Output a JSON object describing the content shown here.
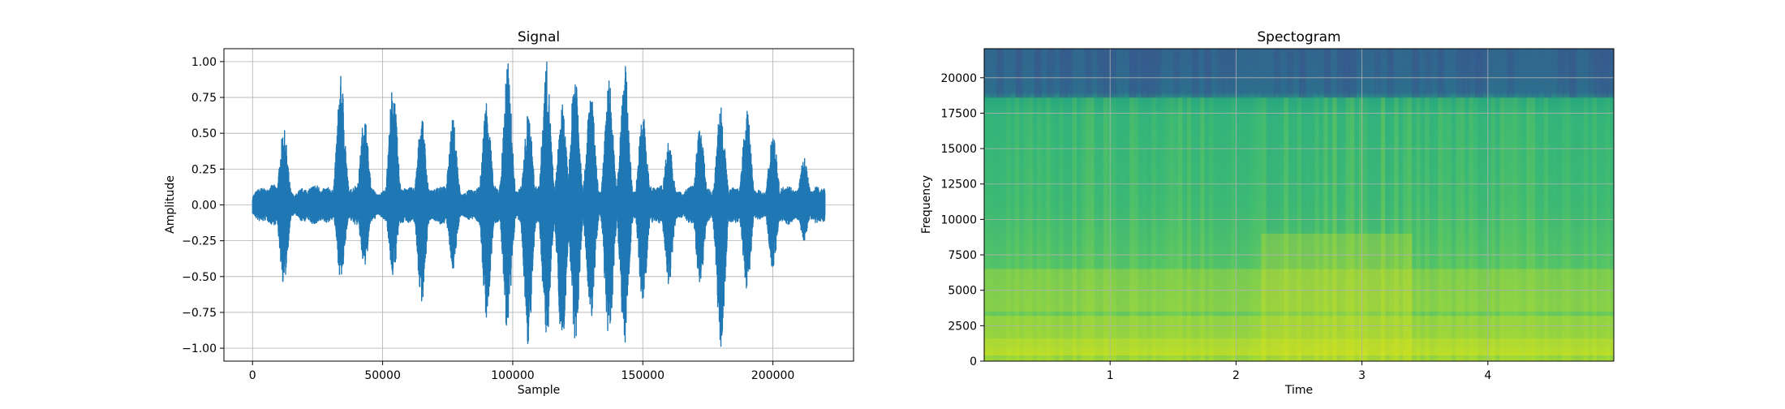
{
  "chart_data": [
    {
      "type": "line",
      "title": "Signal",
      "xlabel": "Sample",
      "ylabel": "Amplitude",
      "xlim": [
        -11000,
        231000
      ],
      "ylim": [
        -1.09,
        1.09
      ],
      "grid": true,
      "xticks": [
        0,
        50000,
        100000,
        150000,
        200000
      ],
      "xticklabels": [
        "0",
        "50000",
        "100000",
        "150000",
        "200000"
      ],
      "yticks": [
        1.0,
        0.75,
        0.5,
        0.25,
        0.0,
        -0.25,
        -0.5,
        -0.75,
        -1.0
      ],
      "yticklabels": [
        "1.00",
        "0.75",
        "0.50",
        "0.25",
        "0.00",
        "−0.25",
        "−0.50",
        "−0.75",
        "−1.00"
      ],
      "series": [
        {
          "color": "#1f77b4",
          "x_range": [
            0,
            220000
          ],
          "envelope_peaks": [
            {
              "x": 12000,
              "upper": 0.53,
              "lower": -0.56
            },
            {
              "x": 34000,
              "upper": 0.9,
              "lower": -0.53
            },
            {
              "x": 43000,
              "upper": 0.63,
              "lower": -0.45
            },
            {
              "x": 54000,
              "upper": 0.85,
              "lower": -0.5
            },
            {
              "x": 65000,
              "upper": 0.61,
              "lower": -0.68
            },
            {
              "x": 77000,
              "upper": 0.6,
              "lower": -0.45
            },
            {
              "x": 90000,
              "upper": 0.75,
              "lower": -0.8
            },
            {
              "x": 98000,
              "upper": 1.0,
              "lower": -0.9
            },
            {
              "x": 106000,
              "upper": 0.65,
              "lower": -0.98
            },
            {
              "x": 113000,
              "upper": 1.0,
              "lower": -0.95
            },
            {
              "x": 119000,
              "upper": 0.7,
              "lower": -1.0
            },
            {
              "x": 124000,
              "upper": 0.98,
              "lower": -0.97
            },
            {
              "x": 130000,
              "upper": 0.8,
              "lower": -0.82
            },
            {
              "x": 137000,
              "upper": 0.88,
              "lower": -1.0
            },
            {
              "x": 143000,
              "upper": 1.0,
              "lower": -0.98
            },
            {
              "x": 150000,
              "upper": 0.65,
              "lower": -0.7
            },
            {
              "x": 160000,
              "upper": 0.45,
              "lower": -0.56
            },
            {
              "x": 172000,
              "upper": 0.55,
              "lower": -0.55
            },
            {
              "x": 180000,
              "upper": 0.73,
              "lower": -1.0
            },
            {
              "x": 190000,
              "upper": 0.67,
              "lower": -0.6
            },
            {
              "x": 200000,
              "upper": 0.53,
              "lower": -0.45
            },
            {
              "x": 212000,
              "upper": 0.33,
              "lower": -0.25
            }
          ]
        }
      ]
    },
    {
      "type": "heatmap",
      "title": "Spectogram",
      "xlabel": "Time",
      "ylabel": "Frequency",
      "xlim": [
        0,
        5
      ],
      "ylim": [
        0,
        22050
      ],
      "grid": true,
      "xticks": [
        1,
        2,
        3,
        4
      ],
      "xticklabels": [
        "1",
        "2",
        "3",
        "4"
      ],
      "yticks": [
        0,
        2500,
        5000,
        7500,
        10000,
        12500,
        15000,
        17500,
        20000
      ],
      "yticklabels": [
        "0",
        "2500",
        "5000",
        "7500",
        "10000",
        "12500",
        "15000",
        "17500",
        "20000"
      ],
      "colormap": "viridis",
      "cutoff_frequency": 18600,
      "loud_time_range": [
        2.2,
        3.4
      ]
    }
  ]
}
